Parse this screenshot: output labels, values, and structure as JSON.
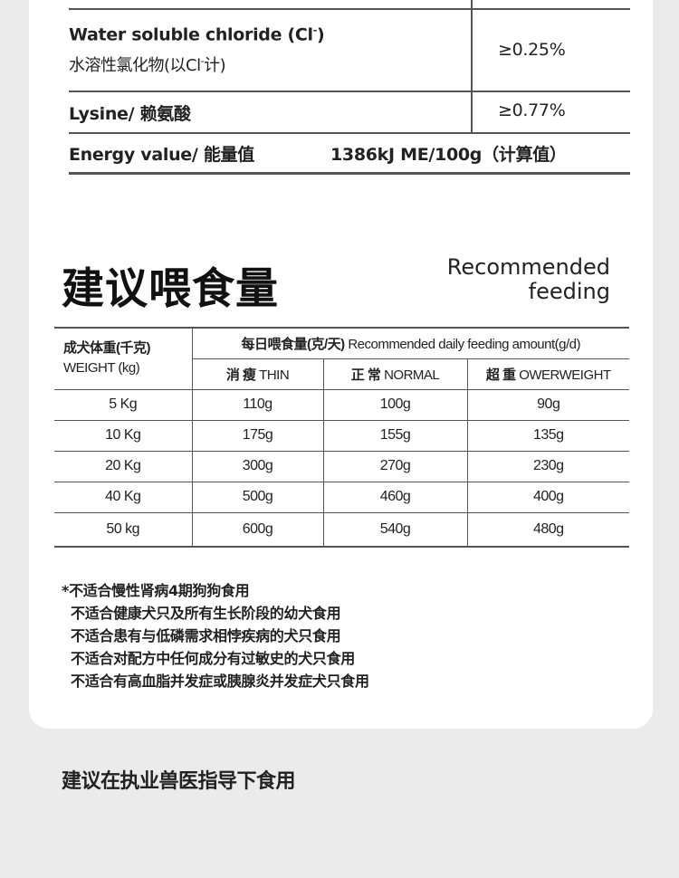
{
  "nutrition": {
    "rows": [
      {
        "label_en": "Water soluble chloride (Cl",
        "label_en_sup": "-",
        "label_en_end": ")",
        "label_cn": "水溶性氯化物(以Cl",
        "label_cn_sup": "-",
        "label_cn_end": "计)",
        "value": "≥0.25%"
      },
      {
        "label": "Lysine/ 赖氨酸",
        "value": "≥0.77%"
      },
      {
        "label": "Energy value/ 能量值",
        "value": "1386kJ  ME/100g（计算值）"
      }
    ]
  },
  "feeding": {
    "title": "建议喂食量",
    "title_en_line1": "Recommended",
    "title_en_line2": "feeding",
    "table": {
      "weight_header_cn": "成犬体重(千克)",
      "weight_header_en": "WEIGHT (kg)",
      "amount_header_cn": "每日喂食量(克/天)",
      "amount_header_en": "Recommended daily feeding amount(g/d)",
      "columns": [
        {
          "cn": "消 瘦",
          "en": "THIN"
        },
        {
          "cn": "正 常",
          "en": "NORMAL"
        },
        {
          "cn": "超 重",
          "en": "OWERWEIGHT"
        }
      ],
      "rows": [
        [
          "5 Kg",
          "110g",
          "100g",
          "90g"
        ],
        [
          "10 Kg",
          "175g",
          "155g",
          "135g"
        ],
        [
          "20 Kg",
          "300g",
          "270g",
          "230g"
        ],
        [
          "40 Kg",
          "500g",
          "460g",
          "400g"
        ],
        [
          "50 kg",
          "600g",
          "540g",
          "480g"
        ]
      ]
    }
  },
  "notes": [
    "*不适合慢性肾病4期狗狗食用",
    "不适合健康犬只及所有生长阶段的幼犬食用",
    "不适合患有与低磷需求相悖疾病的犬只食用",
    "不适合对配方中任何成分有过敏史的犬只食用",
    "不适合有高血脂并发症或胰腺炎并发症犬只食用"
  ],
  "footer": "建议在执业兽医指导下食用"
}
